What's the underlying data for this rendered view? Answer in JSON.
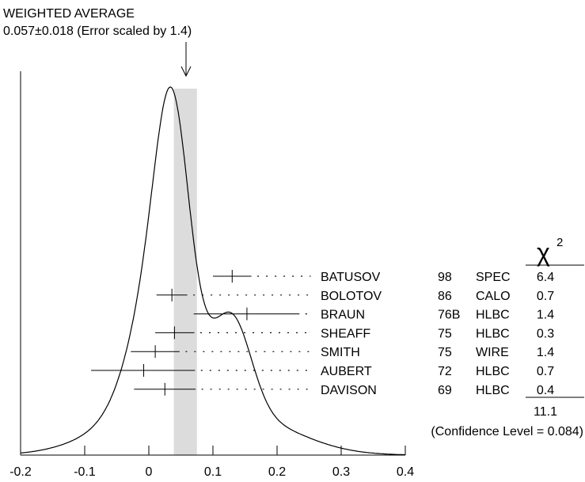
{
  "chart_data": {
    "type": "ideogram",
    "header": {
      "title": "WEIGHTED AVERAGE",
      "subtitle": "0.057±0.018 (Error scaled by 1.4)"
    },
    "weighted_average": {
      "value": 0.057,
      "error": 0.018,
      "scale_factor": 1.4
    },
    "x_ticks": [
      "-0.2",
      "-0.1",
      "0",
      "0.1",
      "0.2",
      "0.3",
      "0.4"
    ],
    "x_tick_values": [
      -0.2,
      -0.1,
      0,
      0.1,
      0.2,
      0.3,
      0.4
    ],
    "xlim": [
      -0.2,
      0.4
    ],
    "chi2_header": "χ",
    "chi2_power": "2",
    "measurements": [
      {
        "name": "BATUSOV",
        "year": "98",
        "technique": "SPEC",
        "chi2": "6.4",
        "value": 0.13,
        "low": 0.1,
        "high": 0.16
      },
      {
        "name": "BOLOTOV",
        "year": "86",
        "technique": "CALO",
        "chi2": "0.7",
        "value": 0.036,
        "low": 0.012,
        "high": 0.06
      },
      {
        "name": "BRAUN",
        "year": "76B",
        "technique": "HLBC",
        "chi2": "1.4",
        "value": 0.153,
        "low": 0.07,
        "high": 0.235
      },
      {
        "name": "SHEAFF",
        "year": "75",
        "technique": "HLBC",
        "chi2": "0.3",
        "value": 0.04,
        "low": 0.01,
        "high": 0.071
      },
      {
        "name": "SMITH",
        "year": "75",
        "technique": "WIRE",
        "chi2": "1.4",
        "value": 0.01,
        "low": -0.028,
        "high": 0.048
      },
      {
        "name": "AUBERT",
        "year": "72",
        "technique": "HLBC",
        "chi2": "0.7",
        "value": -0.008,
        "low": -0.09,
        "high": 0.072
      },
      {
        "name": "DAVISON",
        "year": "69",
        "technique": "HLBC",
        "chi2": "0.4",
        "value": 0.025,
        "low": -0.023,
        "high": 0.073
      }
    ],
    "chi2_total": "11.1",
    "confidence_level_text": "(Confidence Level = 0.084)"
  }
}
